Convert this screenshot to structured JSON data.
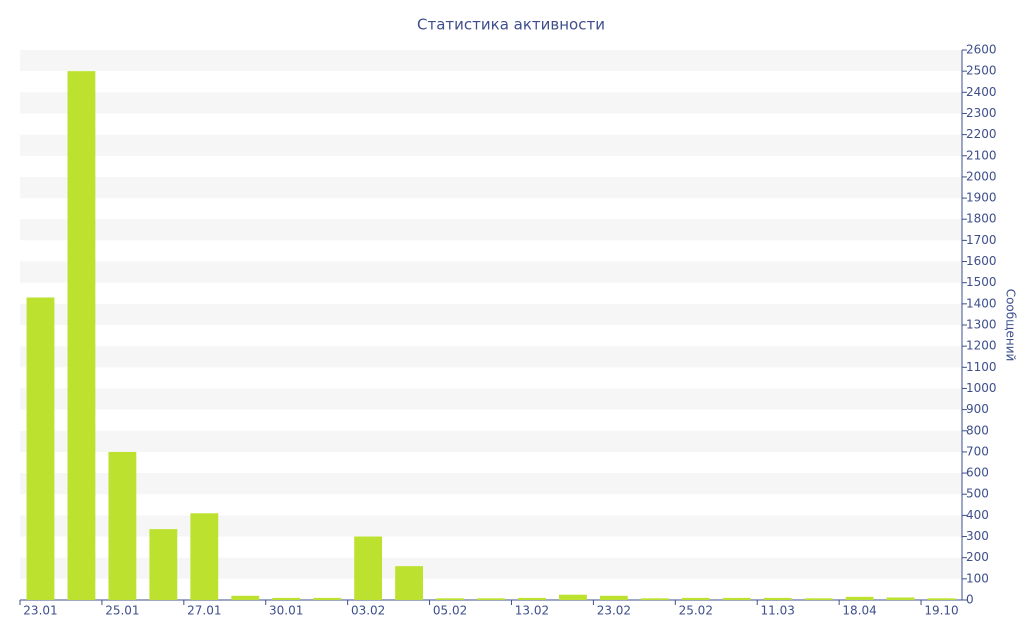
{
  "chart_data": {
    "type": "bar",
    "title": "Статистика активности",
    "y_label": "Сообщений",
    "categories": [
      "23.01",
      null,
      "25.01",
      null,
      "27.01",
      null,
      "30.01",
      null,
      "03.02",
      null,
      "05.02",
      null,
      "13.02",
      null,
      "23.02",
      null,
      "25.02",
      null,
      "11.03",
      null,
      "18.04",
      null,
      "19.10"
    ],
    "values": [
      1430,
      2500,
      700,
      335,
      410,
      20,
      10,
      10,
      300,
      160,
      8,
      8,
      10,
      25,
      20,
      8,
      10,
      10,
      10,
      8,
      15,
      12,
      8
    ],
    "color": "#bce22f",
    "ylim": [
      0,
      2600
    ],
    "yticks": [
      0,
      100,
      200,
      300,
      400,
      500,
      600,
      700,
      800,
      900,
      1000,
      1100,
      1200,
      1300,
      1400,
      1500,
      1600,
      1700,
      1800,
      1900,
      2000,
      2100,
      2200,
      2300,
      2400,
      2500,
      2600
    ],
    "grid": true
  }
}
